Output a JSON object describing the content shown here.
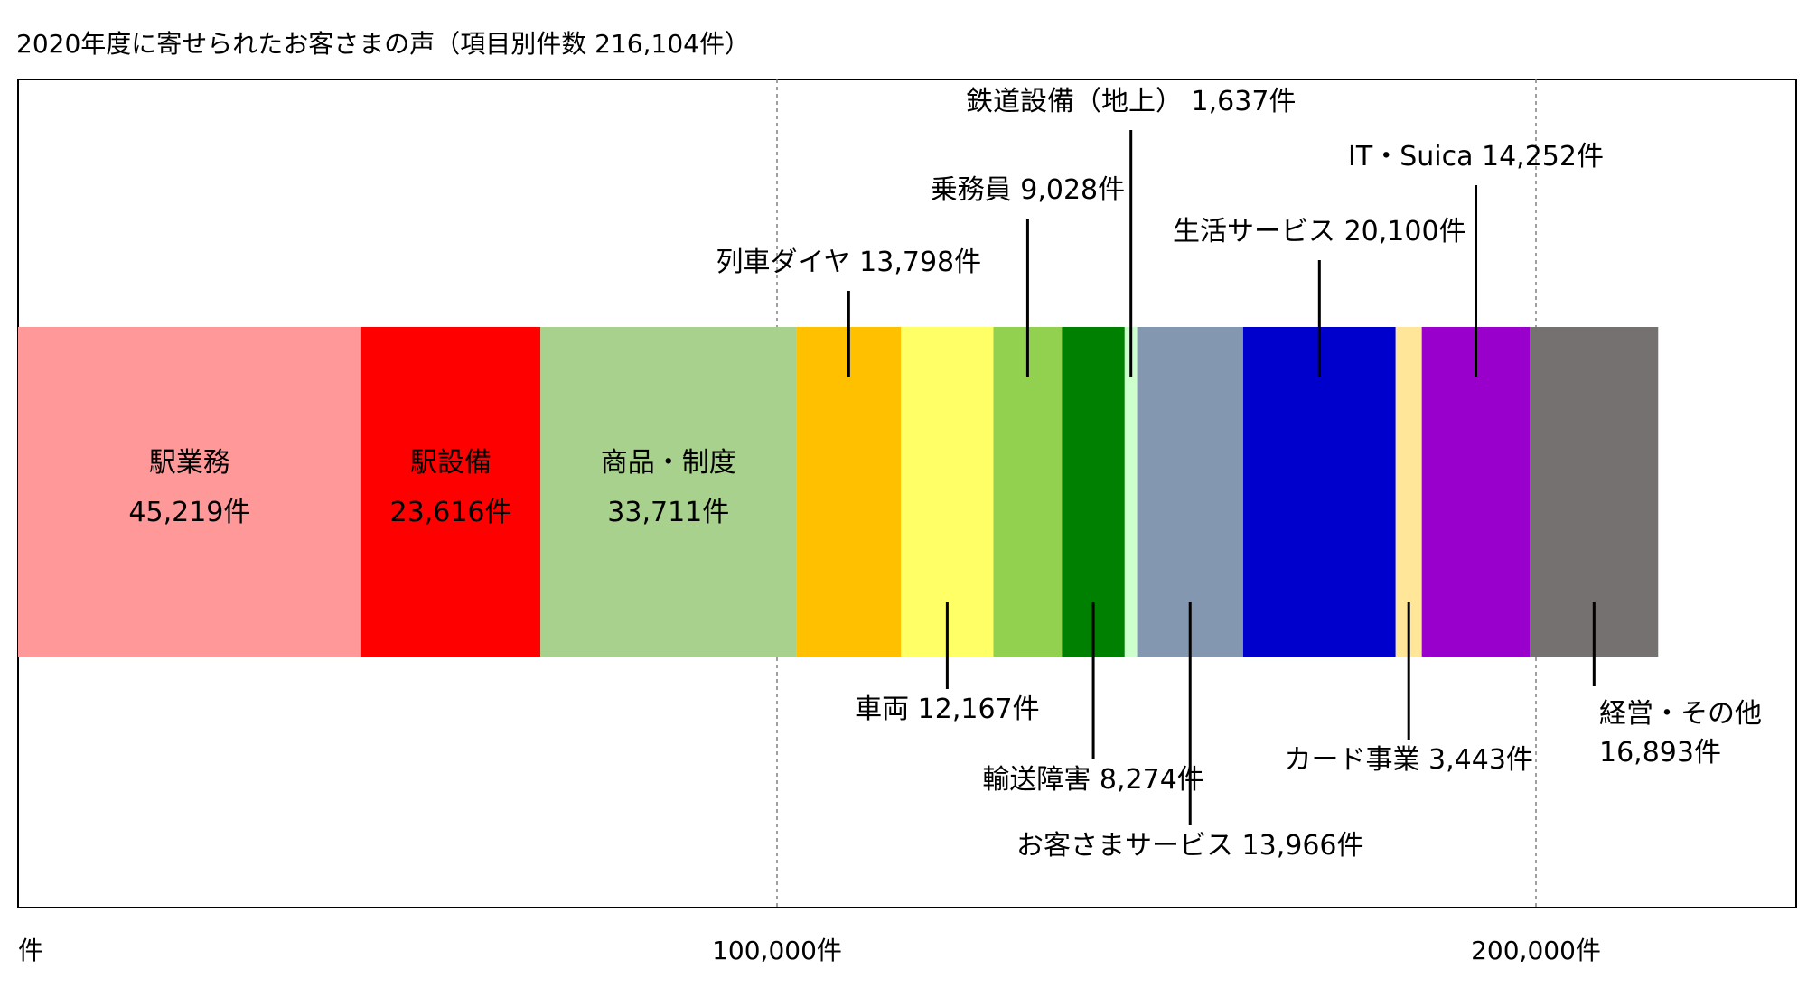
{
  "chart_data": {
    "type": "bar",
    "subtype": "single-stacked-horizontal",
    "title": "2020年度に寄せられたお客さまの声（項目別件数 216,104件）",
    "xlim": [
      0,
      235000
    ],
    "xticks": [
      {
        "value": 0,
        "label": "件"
      },
      {
        "value": 100000,
        "label": "100,000件"
      },
      {
        "value": 200000,
        "label": "200,000件"
      }
    ],
    "gridlines": [
      100000,
      200000
    ],
    "segments": [
      {
        "name": "駅業務",
        "value": 45219,
        "value_label": "45,219件",
        "color": "#FF9999",
        "label_pos": "inside"
      },
      {
        "name": "駅設備",
        "value": 23616,
        "value_label": "23,616件",
        "color": "#FF0000",
        "label_pos": "inside"
      },
      {
        "name": "商品・制度",
        "value": 33711,
        "value_label": "33,711件",
        "color": "#A9D18E",
        "label_pos": "inside"
      },
      {
        "name": "列車ダイヤ",
        "value": 13798,
        "value_label": "13,798件",
        "color": "#FFC000",
        "label_pos": "above",
        "level": 3
      },
      {
        "name": "車両",
        "value": 12167,
        "value_label": "12,167件",
        "color": "#FFFF66",
        "label_pos": "below",
        "level": 1
      },
      {
        "name": "乗務員",
        "value": 9028,
        "value_label": "9,028件",
        "color": "#92D050",
        "label_pos": "above",
        "level": 2
      },
      {
        "name": "輸送障害",
        "value": 8274,
        "value_label": "8,274件",
        "color": "#008000",
        "label_pos": "below",
        "level": 2
      },
      {
        "name": "鉄道設備（地上）",
        "value": 1637,
        "value_label": "1,637件",
        "color": "#CCFFCC",
        "label_pos": "above",
        "level": 1
      },
      {
        "name": "お客さまサービス",
        "value": 13966,
        "value_label": "13,966件",
        "color": "#8497B0",
        "label_pos": "below",
        "level": 3
      },
      {
        "name": "生活サービス",
        "value": 20100,
        "value_label": "20,100件",
        "color": "#0000CC",
        "label_pos": "above",
        "level": 3
      },
      {
        "name": "カード事業",
        "value": 3443,
        "value_label": "3,443件",
        "color": "#FFE699",
        "label_pos": "below",
        "level": 1.6
      },
      {
        "name": "IT・Suica",
        "value": 14252,
        "value_label": "14,252件",
        "color": "#9900CC",
        "label_pos": "above",
        "level": 2
      },
      {
        "name": "経営・その他",
        "value": 16893,
        "value_label": "16,893件",
        "color": "#767171",
        "label_pos": "below-stacked",
        "level": 1
      }
    ]
  }
}
